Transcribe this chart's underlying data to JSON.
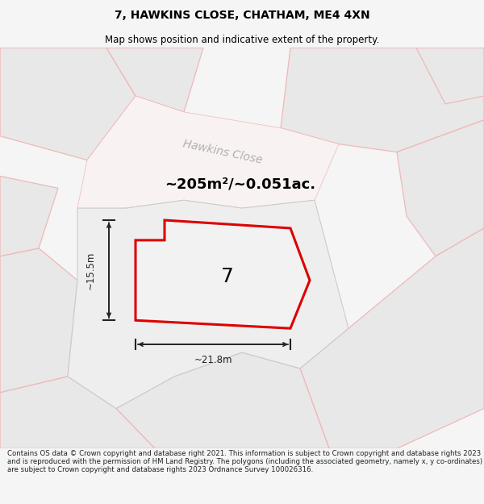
{
  "title": "7, HAWKINS CLOSE, CHATHAM, ME4 4XN",
  "subtitle": "Map shows position and indicative extent of the property.",
  "footer": "Contains OS data © Crown copyright and database right 2021. This information is subject to Crown copyright and database rights 2023 and is reproduced with the permission of HM Land Registry. The polygons (including the associated geometry, namely x, y co-ordinates) are subject to Crown copyright and database rights 2023 Ordnance Survey 100026316.",
  "street_label": "Hawkins Close",
  "area_label": "~205m²/~0.051ac.",
  "number_label": "7",
  "width_label": "~21.8m",
  "height_label": "~15.5m",
  "bg_color": "#f5f5f5",
  "map_bg": "#ffffff",
  "parcel_fill": "#e8e8e8",
  "parcel_edge": "#f0b8b8",
  "road_fill": "#f8f0f0",
  "center_parcel_fill": "#eeeeee",
  "center_parcel_edge": "#cccccc",
  "plot_fill": "#f2f2f2",
  "plot_edge": "#dd0000",
  "dim_color": "#222222",
  "street_color": "#b0b0b0",
  "title_color": "#000000",
  "footer_color": "#222222",
  "title_fontsize": 10,
  "subtitle_fontsize": 8.5,
  "footer_fontsize": 6.2,
  "area_fontsize": 13,
  "number_fontsize": 18,
  "street_fontsize": 10,
  "dim_fontsize": 8.5
}
